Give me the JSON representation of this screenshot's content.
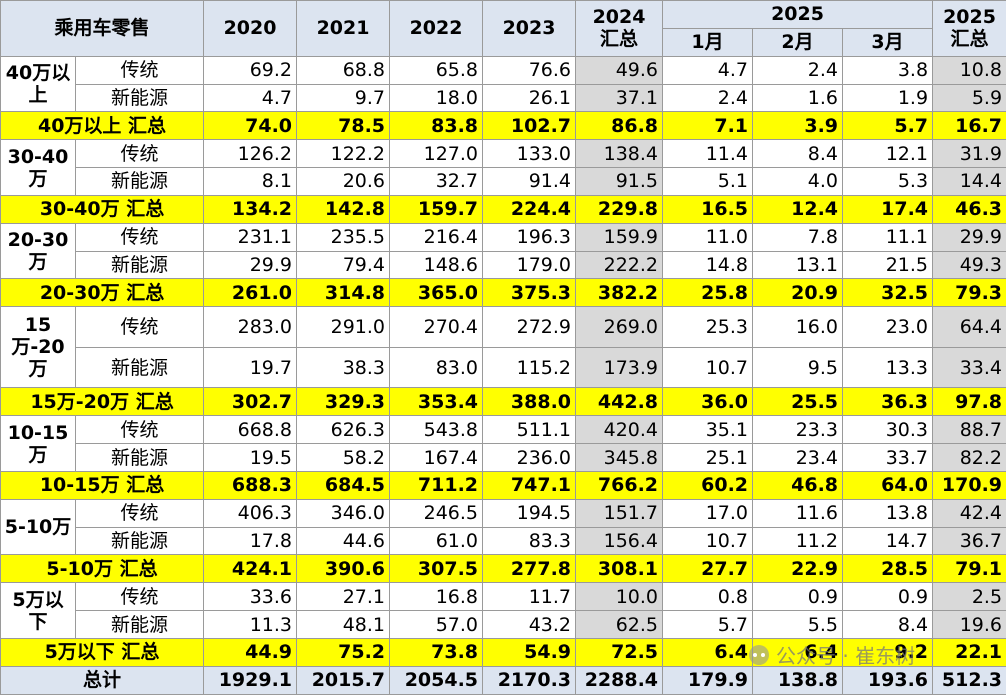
{
  "header": {
    "corner": "乘用车零售",
    "years": [
      "2020",
      "2021",
      "2022",
      "2023"
    ],
    "y2024": "2024 汇总",
    "y2025": "2025",
    "months": [
      "1月",
      "2月",
      "3月"
    ],
    "y2025total": "2025 汇总"
  },
  "groups": [
    {
      "label": "40万以上",
      "rows": [
        {
          "type": "传统",
          "values": [
            "69.2",
            "68.8",
            "65.8",
            "76.6",
            "49.6",
            "4.7",
            "2.4",
            "3.8",
            "10.8"
          ]
        },
        {
          "type": "新能源",
          "values": [
            "4.7",
            "9.7",
            "18.0",
            "26.1",
            "37.1",
            "2.4",
            "1.6",
            "1.9",
            "5.9"
          ]
        }
      ],
      "total_label": "40万以上 汇总",
      "total": [
        "74.0",
        "78.5",
        "83.8",
        "102.7",
        "86.8",
        "7.1",
        "3.9",
        "5.7",
        "16.7"
      ]
    },
    {
      "label": "30-40万",
      "rows": [
        {
          "type": "传统",
          "values": [
            "126.2",
            "122.2",
            "127.0",
            "133.0",
            "138.4",
            "11.4",
            "8.4",
            "12.1",
            "31.9"
          ]
        },
        {
          "type": "新能源",
          "values": [
            "8.1",
            "20.6",
            "32.7",
            "91.4",
            "91.5",
            "5.1",
            "4.0",
            "5.3",
            "14.4"
          ]
        }
      ],
      "total_label": "30-40万 汇总",
      "total": [
        "134.2",
        "142.8",
        "159.7",
        "224.4",
        "229.8",
        "16.5",
        "12.4",
        "17.4",
        "46.3"
      ]
    },
    {
      "label": "20-30万",
      "rows": [
        {
          "type": "传统",
          "values": [
            "231.1",
            "235.5",
            "216.4",
            "196.3",
            "159.9",
            "11.0",
            "7.8",
            "11.1",
            "29.9"
          ]
        },
        {
          "type": "新能源",
          "values": [
            "29.9",
            "79.4",
            "148.6",
            "179.0",
            "222.2",
            "14.8",
            "13.1",
            "21.5",
            "49.3"
          ]
        }
      ],
      "total_label": "20-30万 汇总",
      "total": [
        "261.0",
        "314.8",
        "365.0",
        "375.3",
        "382.2",
        "25.8",
        "20.9",
        "32.5",
        "79.3"
      ]
    },
    {
      "label": "15万-20万",
      "rows": [
        {
          "type": "传统",
          "values": [
            "283.0",
            "291.0",
            "270.4",
            "272.9",
            "269.0",
            "25.3",
            "16.0",
            "23.0",
            "64.4"
          ]
        },
        {
          "type": "新能源",
          "values": [
            "19.7",
            "38.3",
            "83.0",
            "115.2",
            "173.9",
            "10.7",
            "9.5",
            "13.3",
            "33.4"
          ]
        }
      ],
      "total_label": "15万-20万 汇总",
      "total": [
        "302.7",
        "329.3",
        "353.4",
        "388.0",
        "442.8",
        "36.0",
        "25.5",
        "36.3",
        "97.8"
      ]
    },
    {
      "label": "10-15万",
      "rows": [
        {
          "type": "传统",
          "values": [
            "668.8",
            "626.3",
            "543.8",
            "511.1",
            "420.4",
            "35.1",
            "23.3",
            "30.3",
            "88.7"
          ]
        },
        {
          "type": "新能源",
          "values": [
            "19.5",
            "58.2",
            "167.4",
            "236.0",
            "345.8",
            "25.1",
            "23.4",
            "33.7",
            "82.2"
          ]
        }
      ],
      "total_label": "10-15万 汇总",
      "total": [
        "688.3",
        "684.5",
        "711.2",
        "747.1",
        "766.2",
        "60.2",
        "46.8",
        "64.0",
        "170.9"
      ]
    },
    {
      "label": "5-10万",
      "rows": [
        {
          "type": "传统",
          "values": [
            "406.3",
            "346.0",
            "246.5",
            "194.5",
            "151.7",
            "17.0",
            "11.6",
            "13.8",
            "42.4"
          ]
        },
        {
          "type": "新能源",
          "values": [
            "17.8",
            "44.6",
            "61.0",
            "83.3",
            "156.4",
            "10.7",
            "11.2",
            "14.7",
            "36.7"
          ]
        }
      ],
      "total_label": "5-10万 汇总",
      "total": [
        "424.1",
        "390.6",
        "307.5",
        "277.8",
        "308.1",
        "27.7",
        "22.9",
        "28.5",
        "79.1"
      ]
    },
    {
      "label": "5万以下",
      "rows": [
        {
          "type": "传统",
          "values": [
            "33.6",
            "27.1",
            "16.8",
            "11.7",
            "10.0",
            "0.8",
            "0.9",
            "0.9",
            "2.5"
          ]
        },
        {
          "type": "新能源",
          "values": [
            "11.3",
            "48.1",
            "57.0",
            "43.2",
            "62.5",
            "5.7",
            "5.5",
            "8.4",
            "19.6"
          ]
        }
      ],
      "total_label": "5万以下 汇总",
      "total": [
        "44.9",
        "75.2",
        "73.8",
        "54.9",
        "72.5",
        "6.4",
        "6.4",
        "9.2",
        "22.1"
      ]
    }
  ],
  "grand": {
    "label": "总计",
    "values": [
      "1929.1",
      "2015.7",
      "2054.5",
      "2170.3",
      "2288.4",
      "179.9",
      "138.8",
      "193.6",
      "512.3"
    ]
  },
  "watermark": "公众号 · 崔东树"
}
